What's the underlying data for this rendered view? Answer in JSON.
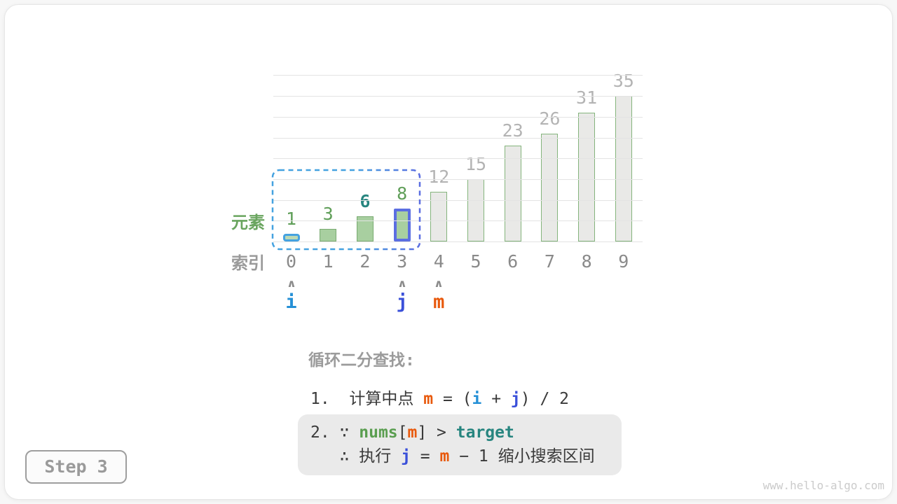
{
  "page": {
    "step_badge": "Step 3",
    "watermark": "www.hello-algo.com"
  },
  "colors": {
    "pointer_i": "#2590d6",
    "pointer_j": "#3a50d9",
    "pointer_m": "#e8590c",
    "green_text": "#5f9e58",
    "teal_text": "#27857f",
    "gray_text": "#b3b3b3",
    "dark_text": "#3a3a3a",
    "box_bg": "#eaeaea"
  },
  "chart_data": {
    "type": "bar",
    "title": "",
    "xlabel": "",
    "ylabel": "",
    "categories": [
      "0",
      "1",
      "2",
      "3",
      "4",
      "5",
      "6",
      "7",
      "8",
      "9"
    ],
    "values": [
      1,
      3,
      6,
      8,
      12,
      15,
      23,
      26,
      31,
      35
    ],
    "ylim": [
      0,
      40
    ],
    "gridline_step": 5,
    "grid": "on",
    "legend": "none",
    "row_labels": {
      "element": "元素",
      "index": "索引"
    },
    "bars": [
      {
        "fill": "#bcd9b4",
        "border": "#45a2e0",
        "border_width": 3,
        "min_height": 11,
        "radius": 4,
        "label_color": "#5f9e58",
        "label_bold": false
      },
      {
        "fill": "#a8cfa0",
        "border": "#79ab71",
        "border_width": 1,
        "radius": 0,
        "label_color": "#5f9e58",
        "label_bold": false
      },
      {
        "fill": "#a8cfa0",
        "border": "#79ab71",
        "border_width": 1,
        "radius": 0,
        "label_color": "#27857f",
        "label_bold": true
      },
      {
        "fill": "#a8cfa0",
        "border": "#5b6ee1",
        "border_width": 4,
        "radius": 2,
        "label_color": "#5f9e58",
        "label_bold": false
      },
      {
        "fill": "#e9e9e7",
        "border": "#84b47c",
        "border_width": 1,
        "radius": 0,
        "label_color": "#b3b3b3",
        "label_bold": false
      },
      {
        "fill": "#e9e9e7",
        "border": "#84b47c",
        "border_width": 1,
        "radius": 0,
        "label_color": "#b3b3b3",
        "label_bold": false
      },
      {
        "fill": "#e9e9e7",
        "border": "#84b47c",
        "border_width": 1,
        "radius": 0,
        "label_color": "#b3b3b3",
        "label_bold": false
      },
      {
        "fill": "#e9e9e7",
        "border": "#84b47c",
        "border_width": 1,
        "radius": 0,
        "label_color": "#b3b3b3",
        "label_bold": false
      },
      {
        "fill": "#e9e9e7",
        "border": "#84b47c",
        "border_width": 1,
        "radius": 0,
        "label_color": "#b3b3b3",
        "label_bold": false
      },
      {
        "fill": "#e9e9e7",
        "border": "#84b47c",
        "border_width": 1,
        "radius": 0,
        "label_color": "#b3b3b3",
        "label_bold": false
      }
    ],
    "pointers": [
      {
        "label": "i",
        "index": 0,
        "color": "#2590d6"
      },
      {
        "label": "j",
        "index": 3,
        "color": "#3a50d9"
      },
      {
        "label": "m",
        "index": 4,
        "color": "#e8590c"
      }
    ],
    "selection": {
      "from_index": 0,
      "to_index": 3,
      "color_left": "#45a2e0",
      "color_right": "#5b6ee1"
    }
  },
  "annotation": {
    "title": "循环二分查找:",
    "line1": [
      {
        "t": "1.  计算中点 ",
        "c": "#3a3a3a"
      },
      {
        "t": "m",
        "c": "#e8590c",
        "b": true
      },
      {
        "t": " = (",
        "c": "#3a3a3a"
      },
      {
        "t": "i",
        "c": "#2590d6",
        "b": true
      },
      {
        "t": " + ",
        "c": "#3a3a3a"
      },
      {
        "t": "j",
        "c": "#3a50d9",
        "b": true
      },
      {
        "t": ") / 2",
        "c": "#3a3a3a"
      }
    ],
    "box_line1": [
      {
        "t": "2. ∵ ",
        "c": "#3a3a3a"
      },
      {
        "t": "nums",
        "c": "#5a9e50",
        "b": true
      },
      {
        "t": "[",
        "c": "#3a3a3a"
      },
      {
        "t": "m",
        "c": "#e8590c",
        "b": true
      },
      {
        "t": "] > ",
        "c": "#3a3a3a"
      },
      {
        "t": "target",
        "c": "#27857f",
        "b": true
      }
    ],
    "box_line2": [
      {
        "t": "   ∴ 执行 ",
        "c": "#3a3a3a"
      },
      {
        "t": "j",
        "c": "#3a50d9",
        "b": true
      },
      {
        "t": " = ",
        "c": "#3a3a3a"
      },
      {
        "t": "m",
        "c": "#e8590c",
        "b": true
      },
      {
        "t": " − 1 缩小搜索区间",
        "c": "#3a3a3a"
      }
    ]
  }
}
